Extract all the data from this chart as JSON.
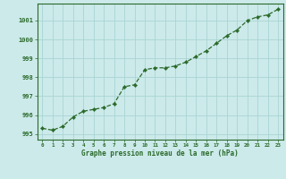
{
  "x": [
    0,
    1,
    2,
    3,
    4,
    5,
    6,
    7,
    8,
    9,
    10,
    11,
    12,
    13,
    14,
    15,
    16,
    17,
    18,
    19,
    20,
    21,
    22,
    23
  ],
  "y": [
    995.3,
    995.2,
    995.4,
    995.9,
    996.2,
    996.3,
    996.4,
    996.6,
    997.5,
    997.6,
    998.4,
    998.5,
    998.5,
    998.6,
    998.8,
    999.1,
    999.4,
    999.8,
    1000.2,
    1000.5,
    1001.0,
    1001.2,
    1001.3,
    1001.6
  ],
  "line_color": "#2a6a2a",
  "marker_color": "#2a6a2a",
  "bg_color": "#cceaea",
  "grid_color": "#aad4d4",
  "xlabel": "Graphe pression niveau de la mer (hPa)",
  "xlabel_color": "#2a6a2a",
  "ytick_labels": [
    "995",
    "996",
    "997",
    "998",
    "999",
    "1000",
    "1001"
  ],
  "yticks": [
    995,
    996,
    997,
    998,
    999,
    1000,
    1001
  ],
  "ylim": [
    994.7,
    1001.9
  ],
  "xlim": [
    -0.5,
    23.5
  ],
  "tick_color": "#2a6a2a",
  "axis_color": "#2a6a2a"
}
